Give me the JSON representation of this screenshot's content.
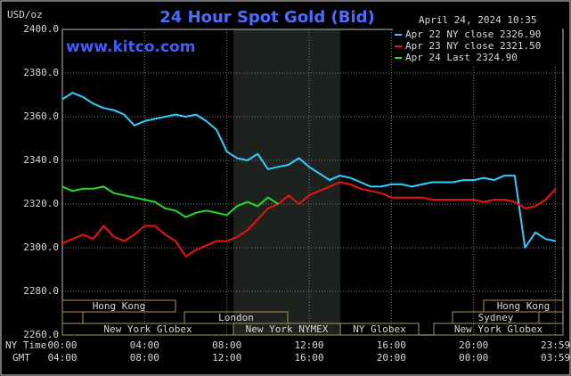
{
  "chart_data": {
    "type": "line",
    "title": "24 Hour Spot Gold (Bid)",
    "unit_label": "USD/oz",
    "site": "www.kitco.com",
    "timestamp": "April 24, 2024 10:35",
    "x_row_labels": [
      "NY Time",
      "GMT"
    ],
    "x": [
      0,
      0.5,
      1,
      1.5,
      2,
      2.5,
      3,
      3.5,
      4,
      4.5,
      5,
      5.5,
      6,
      6.5,
      7,
      7.5,
      8,
      8.5,
      9,
      9.5,
      10,
      10.5,
      11,
      11.5,
      12,
      12.5,
      13,
      13.5,
      14,
      14.5,
      15,
      15.5,
      16,
      16.5,
      17,
      17.5,
      18,
      18.5,
      19,
      19.5,
      20,
      20.5,
      21,
      21.5,
      22,
      22.5,
      23,
      23.5,
      24
    ],
    "xlim": [
      0,
      24
    ],
    "xticks": [
      {
        "value": 0,
        "label": "00:00"
      },
      {
        "value": 4,
        "label": "04:00"
      },
      {
        "value": 8,
        "label": "08:00"
      },
      {
        "value": 12,
        "label": "12:00"
      },
      {
        "value": 16,
        "label": "16:00"
      },
      {
        "value": 20,
        "label": "20:00"
      },
      {
        "value": 23.98,
        "label": "23:59"
      }
    ],
    "xticks_gmt": [
      "04:00",
      "08:00",
      "12:00",
      "16:00",
      "20:00",
      "00:00",
      "03:59"
    ],
    "ylim": [
      2260,
      2400
    ],
    "yticks": [
      {
        "value": 2260,
        "label": "2260.0"
      },
      {
        "value": 2280,
        "label": "2280.0"
      },
      {
        "value": 2300,
        "label": "2300.0"
      },
      {
        "value": 2320,
        "label": "2320.0"
      },
      {
        "value": 2340,
        "label": "2340.0"
      },
      {
        "value": 2360,
        "label": "2360.0"
      },
      {
        "value": 2380,
        "label": "2380.0"
      },
      {
        "value": 2400,
        "label": "2400.0"
      }
    ],
    "grid": true,
    "series": [
      {
        "name": "Apr 22 NY close 2326.90",
        "color": "#33ccff",
        "values": [
          2368,
          2371,
          2369,
          2366,
          2364,
          2363,
          2361,
          2356,
          2358,
          2359,
          2360,
          2361,
          2360,
          2361,
          2358,
          2354,
          2344,
          2341,
          2340,
          2343,
          2336,
          2337,
          2338,
          2341,
          2337,
          2334,
          2331,
          2333,
          2332,
          2330,
          2328,
          2328,
          2329,
          2329,
          2328,
          2329,
          2330,
          2330,
          2330,
          2331,
          2331,
          2332,
          2331,
          2333,
          2333,
          2300,
          2307,
          2304,
          2303
        ]
      },
      {
        "name": "Apr 23 NY close 2321.50",
        "color": "#ee1111",
        "values": [
          2302,
          2304,
          2306,
          2304,
          2310,
          2305,
          2303,
          2306,
          2310,
          2310,
          2306,
          2303,
          2296,
          2299,
          2301,
          2303,
          2303,
          2305,
          2308,
          2313,
          2318,
          2320,
          2324,
          2320,
          2324,
          2326,
          2328,
          2330,
          2329,
          2327,
          2326,
          2325,
          2323,
          2323,
          2323,
          2323,
          2322,
          2322,
          2322,
          2322,
          2322,
          2321,
          2322,
          2322,
          2321,
          2318,
          2319,
          2322,
          2327
        ]
      },
      {
        "name": "Apr 24 Last 2324.90",
        "color": "#22dd22",
        "values": [
          2328,
          2326,
          2327,
          2327,
          2328,
          2325,
          2324,
          2323,
          2322,
          2321,
          2318,
          2317,
          2314,
          2316,
          2317,
          2316,
          2315,
          2319,
          2321,
          2319,
          2323,
          2320,
          null,
          null,
          null,
          null,
          null,
          null,
          null,
          null,
          null,
          null,
          null,
          null,
          null,
          null,
          null,
          null,
          null,
          null,
          null,
          null,
          null,
          null,
          null,
          null,
          null,
          null,
          null
        ]
      }
    ],
    "sessions": [
      "Hong Kong",
      "Hong Kong",
      "London",
      "Sydney",
      "New York Globex",
      "New York NYMEX",
      "NY Globex",
      "New York Globex"
    ]
  }
}
